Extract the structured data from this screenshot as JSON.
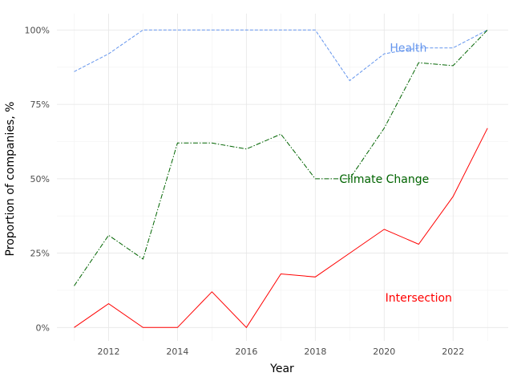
{
  "chart_data": {
    "type": "line",
    "xlabel": "Year",
    "ylabel": "Proportion of companies, %",
    "xlim": [
      2010.5,
      2023.6
    ],
    "ylim": [
      -4.5,
      105.5
    ],
    "grid": true,
    "x_ticks": [
      2012,
      2014,
      2016,
      2018,
      2020,
      2022
    ],
    "y_ticks": [
      0,
      25,
      50,
      75,
      100
    ],
    "y_tick_labels": [
      "0%",
      "25%",
      "50%",
      "75%",
      "100%"
    ],
    "x": [
      2011,
      2012,
      2013,
      2014,
      2015,
      2016,
      2017,
      2018,
      2019,
      2020,
      2021,
      2022,
      2023
    ],
    "series": [
      {
        "name": "Health",
        "color": "#6495ED",
        "linestyle": "dashed",
        "values": [
          86,
          92,
          100,
          100,
          100,
          100,
          100,
          100,
          83,
          92,
          94,
          94,
          100
        ],
        "label_at": [
          2020.7,
          94
        ]
      },
      {
        "name": "Climate Change",
        "color": "#006400",
        "linestyle": "dashdot",
        "values": [
          14,
          31,
          23,
          62,
          62,
          60,
          65,
          50,
          50,
          67,
          89,
          88,
          100
        ],
        "label_at": [
          2020,
          50
        ]
      },
      {
        "name": "Intersection",
        "color": "#FF0000",
        "linestyle": "solid",
        "values": [
          0,
          8,
          0,
          0,
          12,
          0,
          18,
          17,
          25,
          33,
          28,
          44,
          67
        ],
        "label_at": [
          2021,
          10
        ]
      }
    ]
  }
}
